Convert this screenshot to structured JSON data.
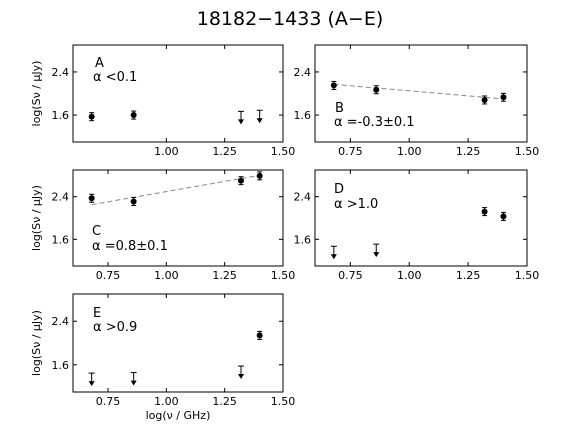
{
  "title": "18182−1433 (A−E)",
  "chart_data": [
    {
      "type": "scatter",
      "panel": "A",
      "annotation_letter": "A",
      "annotation_alpha": "α <0.1",
      "xlim": [
        0.6,
        1.5
      ],
      "ylim": [
        1.1,
        2.9
      ],
      "xticks": [
        "1.00",
        "1.25",
        "1.50"
      ],
      "yticks": [
        "1.6",
        "2.4"
      ],
      "ylabel": "log(Sν / μJy)",
      "xlabel": "",
      "points": [
        {
          "x": 0.68,
          "y": 1.57,
          "kind": "detection"
        },
        {
          "x": 0.86,
          "y": 1.6,
          "kind": "detection"
        },
        {
          "x": 1.32,
          "y": 1.52,
          "kind": "upper_limit"
        },
        {
          "x": 1.4,
          "y": 1.54,
          "kind": "upper_limit"
        }
      ],
      "fit": null
    },
    {
      "type": "scatter",
      "panel": "B",
      "annotation_letter": "B",
      "annotation_alpha": "α =-0.3±0.1",
      "xlim": [
        0.6,
        1.5
      ],
      "ylim": [
        1.1,
        2.9
      ],
      "xticks": [
        "0.75",
        "1.00",
        "1.25",
        "1.50"
      ],
      "yticks": [
        "1.6",
        "2.4"
      ],
      "ylabel": "",
      "xlabel": "",
      "points": [
        {
          "x": 0.68,
          "y": 2.15,
          "kind": "detection"
        },
        {
          "x": 0.86,
          "y": 2.07,
          "kind": "detection"
        },
        {
          "x": 1.32,
          "y": 1.88,
          "kind": "detection"
        },
        {
          "x": 1.4,
          "y": 1.93,
          "kind": "detection"
        }
      ],
      "fit": {
        "x": [
          0.68,
          1.4
        ],
        "y": [
          2.17,
          1.9
        ]
      }
    },
    {
      "type": "scatter",
      "panel": "C",
      "annotation_letter": "C",
      "annotation_alpha": "α =0.8±0.1",
      "xlim": [
        0.6,
        1.5
      ],
      "ylim": [
        1.1,
        2.9
      ],
      "xticks": [
        "0.75",
        "1.00",
        "1.25",
        "1.50"
      ],
      "yticks": [
        "1.6",
        "2.4"
      ],
      "ylabel": "log(Sν / μJy)",
      "xlabel": "",
      "points": [
        {
          "x": 0.68,
          "y": 2.37,
          "kind": "detection"
        },
        {
          "x": 0.86,
          "y": 2.31,
          "kind": "detection"
        },
        {
          "x": 1.32,
          "y": 2.7,
          "kind": "detection"
        },
        {
          "x": 1.4,
          "y": 2.79,
          "kind": "detection"
        }
      ],
      "fit": {
        "x": [
          0.68,
          1.4
        ],
        "y": [
          2.25,
          2.8
        ]
      }
    },
    {
      "type": "scatter",
      "panel": "D",
      "annotation_letter": "D",
      "annotation_alpha": "α >1.0",
      "xlim": [
        0.6,
        1.5
      ],
      "ylim": [
        1.1,
        2.9
      ],
      "xticks": [
        "0.75",
        "1.00",
        "1.25",
        "1.50"
      ],
      "yticks": [
        "1.6",
        "2.4"
      ],
      "ylabel": "",
      "xlabel": "",
      "points": [
        {
          "x": 0.68,
          "y": 1.32,
          "kind": "upper_limit"
        },
        {
          "x": 0.86,
          "y": 1.36,
          "kind": "upper_limit"
        },
        {
          "x": 1.32,
          "y": 2.12,
          "kind": "detection"
        },
        {
          "x": 1.4,
          "y": 2.03,
          "kind": "detection"
        }
      ],
      "fit": null
    },
    {
      "type": "scatter",
      "panel": "E",
      "annotation_letter": "E",
      "annotation_alpha": "α >0.9",
      "xlim": [
        0.6,
        1.5
      ],
      "ylim": [
        1.1,
        2.9
      ],
      "xticks": [
        "0.75",
        "1.00",
        "1.25",
        "1.50"
      ],
      "yticks": [
        "1.6",
        "2.4"
      ],
      "ylabel": "log(Sν / μJy)",
      "xlabel": "log(ν / GHz)",
      "points": [
        {
          "x": 0.68,
          "y": 1.3,
          "kind": "upper_limit"
        },
        {
          "x": 0.86,
          "y": 1.31,
          "kind": "upper_limit"
        },
        {
          "x": 1.32,
          "y": 1.43,
          "kind": "upper_limit"
        },
        {
          "x": 1.4,
          "y": 2.14,
          "kind": "detection"
        }
      ],
      "fit": null
    }
  ]
}
